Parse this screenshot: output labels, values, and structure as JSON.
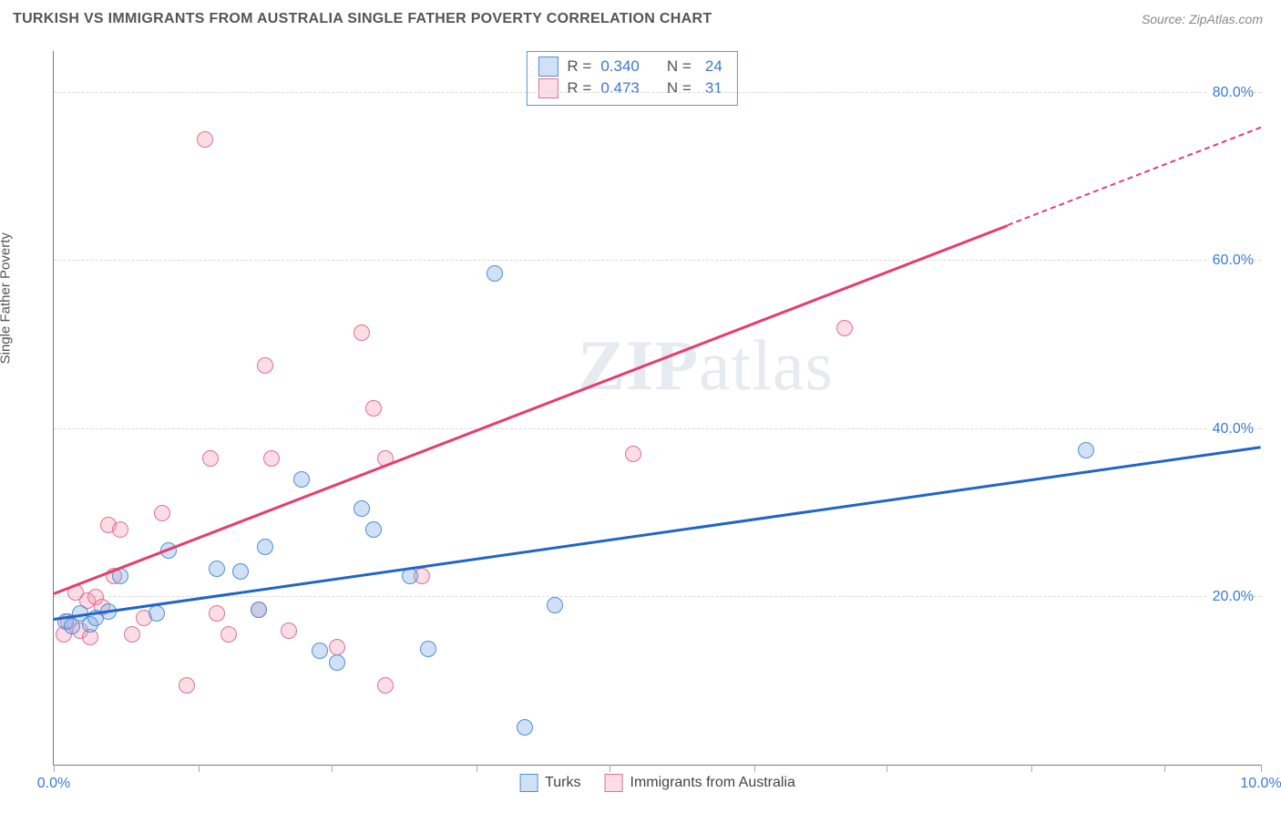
{
  "header": {
    "title": "TURKISH VS IMMIGRANTS FROM AUSTRALIA SINGLE FATHER POVERTY CORRELATION CHART",
    "source": "Source: ZipAtlas.com"
  },
  "axis": {
    "ylabel": "Single Father Poverty",
    "xlim": [
      0,
      10
    ],
    "ylim": [
      0,
      85
    ],
    "xticks": [
      0,
      1.2,
      2.3,
      3.5,
      4.6,
      5.8,
      6.9,
      8.1,
      9.2,
      10
    ],
    "xtick_labels": {
      "0": "0.0%",
      "10": "10.0%"
    },
    "y_gridlines": [
      20,
      40,
      60,
      80
    ],
    "y_right_labels": {
      "20": "20.0%",
      "40": "40.0%",
      "60": "60.0%",
      "80": "80.0%"
    }
  },
  "style": {
    "background": "#ffffff",
    "grid_color": "#d8d8d8",
    "axis_color": "#7a7a7a",
    "tick_label_color": "#3b79d6",
    "series_a": {
      "fill": "rgba(120,170,230,0.35)",
      "stroke": "#4f8fd8",
      "line": "#1f66c7"
    },
    "series_b": {
      "fill": "rgba(240,150,175,0.32)",
      "stroke": "#e27095",
      "line": "#e53e6e"
    },
    "marker_radius": 9,
    "marker_stroke_width": 1.5,
    "trend_width_solid": 3,
    "trend_width_dash": 2
  },
  "watermark": {
    "zip": "ZIP",
    "atlas": "atlas"
  },
  "legend_top": {
    "rows": [
      {
        "series": "a",
        "r_label": "R =",
        "r": "0.340",
        "n_label": "N =",
        "n": "24"
      },
      {
        "series": "b",
        "r_label": "R =",
        "r": "0.473",
        "n_label": "N =",
        "n": "31"
      }
    ]
  },
  "legend_bottom": {
    "a": "Turks",
    "b": "Immigrants from Australia"
  },
  "series_a": {
    "type": "scatter",
    "points": [
      [
        0.1,
        17
      ],
      [
        0.15,
        16.5
      ],
      [
        0.22,
        18
      ],
      [
        0.3,
        16.7
      ],
      [
        0.35,
        17.5
      ],
      [
        0.45,
        18.2
      ],
      [
        0.85,
        18
      ],
      [
        0.55,
        22.5
      ],
      [
        0.95,
        25.5
      ],
      [
        1.35,
        23.3
      ],
      [
        1.75,
        26
      ],
      [
        1.55,
        23
      ],
      [
        1.7,
        18.5
      ],
      [
        2.05,
        34
      ],
      [
        2.55,
        30.5
      ],
      [
        2.65,
        28
      ],
      [
        2.2,
        13.6
      ],
      [
        2.35,
        12.2
      ],
      [
        2.95,
        22.5
      ],
      [
        3.1,
        13.8
      ],
      [
        4.15,
        19
      ],
      [
        3.65,
        58.5
      ],
      [
        3.9,
        4.5
      ],
      [
        8.55,
        37.5
      ]
    ],
    "trend": {
      "x1": 0,
      "y1": 17.5,
      "x2": 10,
      "y2": 38,
      "solid_until_x": 10
    }
  },
  "series_b": {
    "type": "scatter",
    "points": [
      [
        0.08,
        15.5
      ],
      [
        0.12,
        17
      ],
      [
        0.18,
        20.5
      ],
      [
        0.22,
        16
      ],
      [
        0.28,
        19.5
      ],
      [
        0.35,
        20
      ],
      [
        0.45,
        28.5
      ],
      [
        0.55,
        28
      ],
      [
        0.5,
        22.5
      ],
      [
        0.65,
        15.5
      ],
      [
        0.75,
        17.5
      ],
      [
        0.9,
        30
      ],
      [
        1.1,
        9.5
      ],
      [
        1.35,
        18
      ],
      [
        1.25,
        74.5
      ],
      [
        1.3,
        36.5
      ],
      [
        1.45,
        15.5
      ],
      [
        1.7,
        18.5
      ],
      [
        1.75,
        47.5
      ],
      [
        1.8,
        36.5
      ],
      [
        1.95,
        16
      ],
      [
        2.35,
        14
      ],
      [
        2.55,
        51.5
      ],
      [
        2.65,
        42.5
      ],
      [
        2.75,
        36.5
      ],
      [
        2.75,
        9.5
      ],
      [
        3.05,
        22.5
      ],
      [
        4.8,
        37
      ],
      [
        6.55,
        52
      ],
      [
        0.3,
        15.2
      ],
      [
        0.4,
        18.8
      ]
    ],
    "trend": {
      "x1": 0,
      "y1": 20.5,
      "x2": 10,
      "y2": 76,
      "solid_until_x": 7.9
    }
  }
}
